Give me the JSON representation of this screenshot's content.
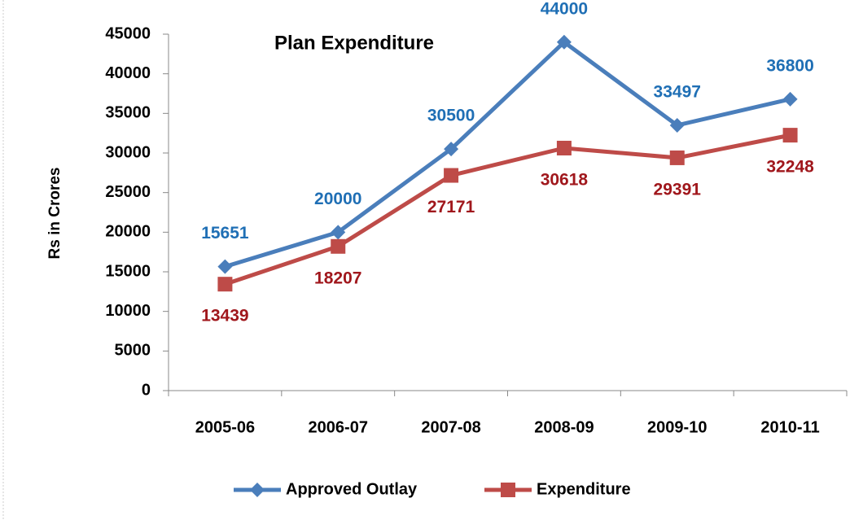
{
  "chart_data": {
    "type": "line",
    "title": "Plan Expenditure",
    "y_label": "Rs in Crores",
    "categories": [
      "2005-06",
      "2006-07",
      "2007-08",
      "2008-09",
      "2009-10",
      "2010-11"
    ],
    "series": [
      {
        "name": "Approved Outlay",
        "color": "#4a7ebb",
        "label_color": "#1f6fb5",
        "marker": "diamond",
        "values": [
          15651,
          20000,
          30500,
          44000,
          33497,
          36800
        ]
      },
      {
        "name": "Expenditure",
        "color": "#be4b48",
        "label_color": "#a0171c",
        "marker": "square",
        "values": [
          13439,
          18207,
          27171,
          30618,
          29391,
          32248
        ]
      }
    ],
    "ylim": [
      0,
      45000
    ],
    "yticks": [
      0,
      5000,
      10000,
      15000,
      20000,
      25000,
      30000,
      35000,
      40000,
      45000
    ],
    "legend": "bottom"
  }
}
